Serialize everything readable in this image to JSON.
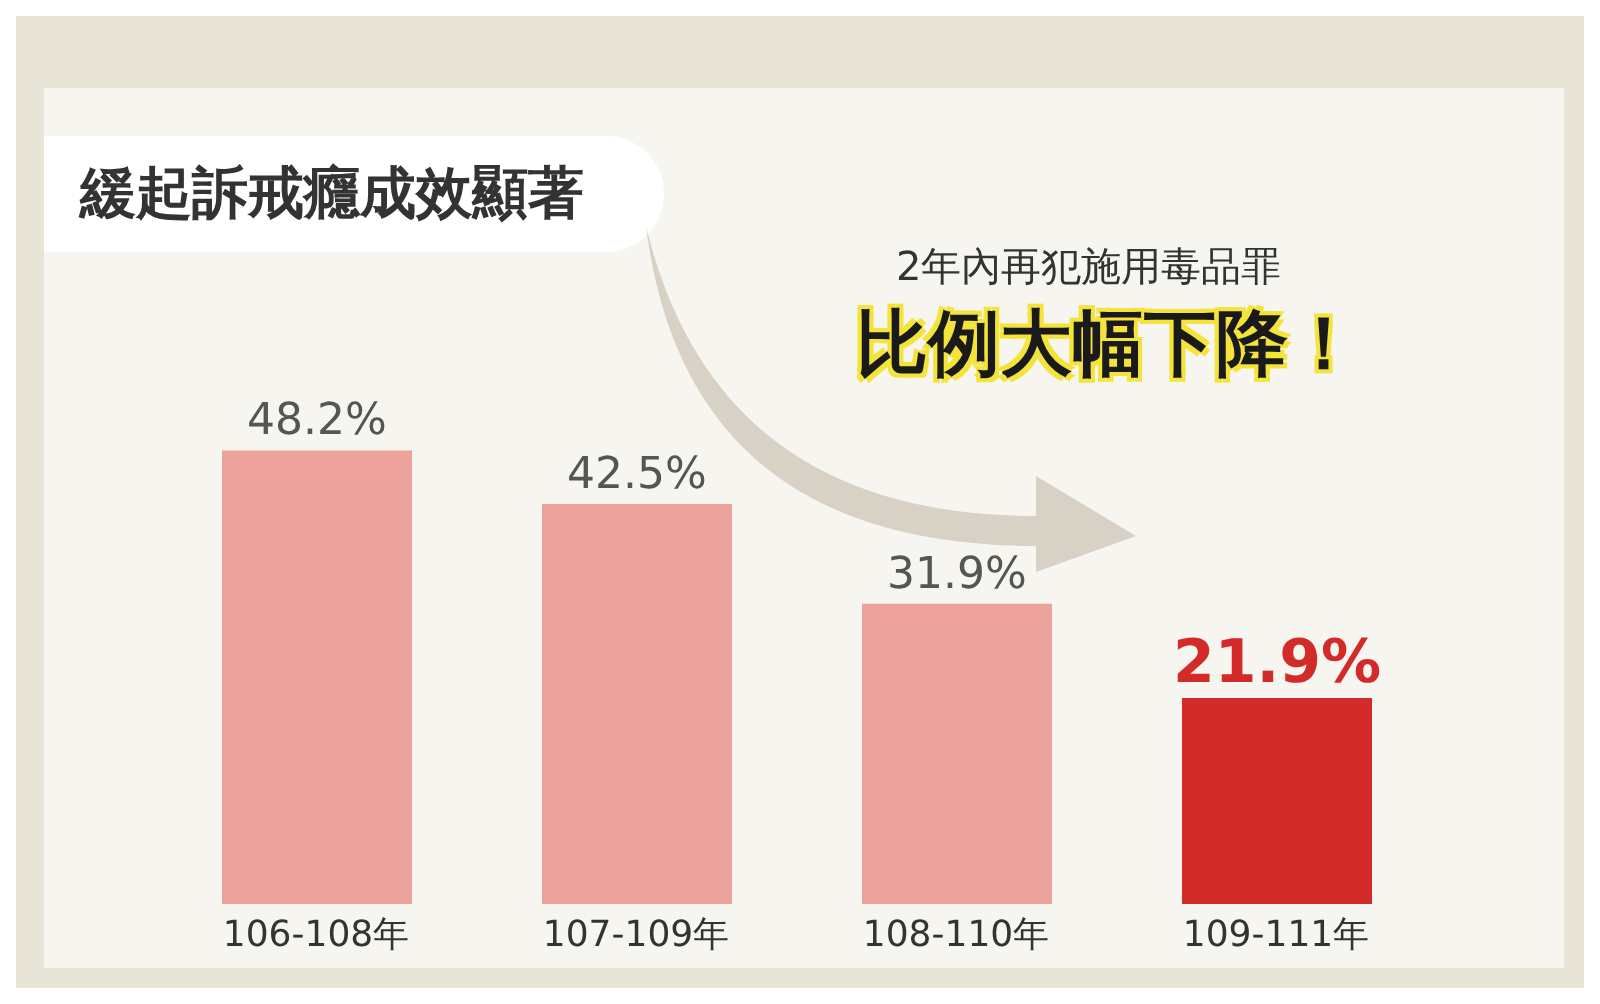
{
  "chart_data": {
    "type": "bar",
    "title": "緩起訴戒癮成效顯著",
    "annotations": [
      "2年內再犯施用毒品罪",
      "比例大幅下降！"
    ],
    "categories": [
      "106-108年",
      "107-109年",
      "108-110年",
      "109-111年"
    ],
    "values": [
      48.2,
      42.5,
      31.9,
      21.9
    ],
    "colors": [
      "#eba39c",
      "#eba39c",
      "#eba39c",
      "#d32a2a"
    ],
    "value_labels": [
      "48.2%",
      "42.5%",
      "31.9%",
      "21.9%"
    ],
    "grid": false,
    "legend": false
  }
}
